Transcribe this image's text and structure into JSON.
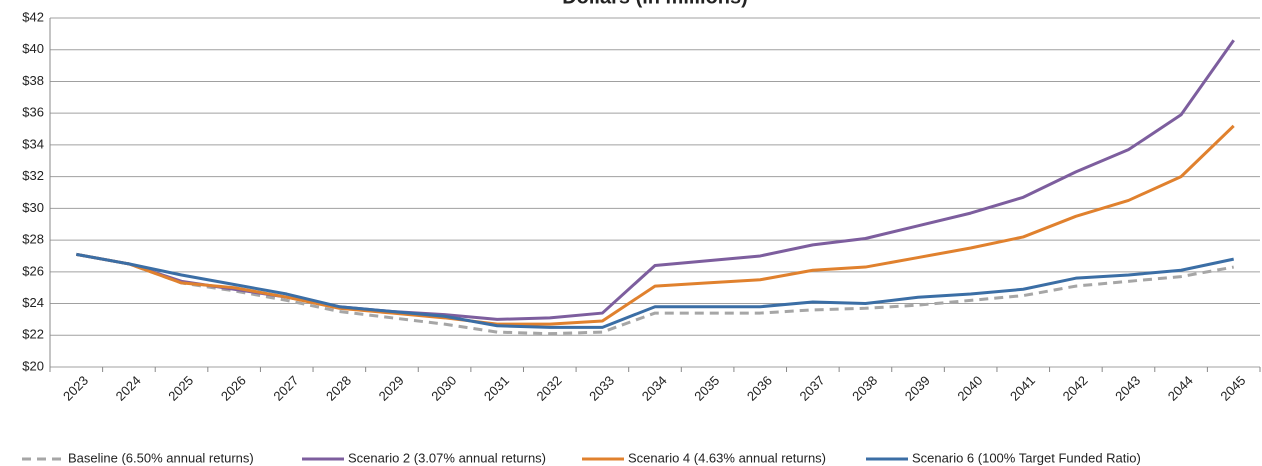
{
  "chart_data": {
    "type": "line",
    "title": "Dollars (in millions)",
    "categories": [
      "2023",
      "2024",
      "2025",
      "2026",
      "2027",
      "2028",
      "2029",
      "2030",
      "2031",
      "2032",
      "2033",
      "2034",
      "2035",
      "2036",
      "2037",
      "2038",
      "2039",
      "2040",
      "2041",
      "2042",
      "2043",
      "2044",
      "2045"
    ],
    "series": [
      {
        "name": "Baseline (6.50% annual returns)",
        "color": "#a6a6a6",
        "dashed": true,
        "values": [
          27.1,
          26.5,
          25.3,
          24.8,
          24.2,
          23.5,
          23.1,
          22.7,
          22.2,
          22.1,
          22.2,
          23.4,
          23.4,
          23.4,
          23.6,
          23.7,
          23.9,
          24.2,
          24.5,
          25.1,
          25.4,
          25.7,
          26.3
        ]
      },
      {
        "name": "Scenario 2 (3.07% annual returns)",
        "color": "#7d5e9e",
        "dashed": false,
        "values": [
          27.1,
          26.5,
          25.4,
          24.9,
          24.4,
          23.8,
          23.5,
          23.3,
          23.0,
          23.1,
          23.4,
          26.4,
          26.7,
          27.0,
          27.7,
          28.1,
          28.9,
          29.7,
          30.7,
          32.3,
          33.7,
          35.9,
          40.6
        ]
      },
      {
        "name": "Scenario 4 (4.63% annual returns)",
        "color": "#e0812e",
        "dashed": false,
        "values": [
          27.1,
          26.5,
          25.3,
          25.0,
          24.4,
          23.7,
          23.4,
          23.1,
          22.7,
          22.7,
          22.9,
          25.1,
          25.3,
          25.5,
          26.1,
          26.3,
          26.9,
          27.5,
          28.2,
          29.5,
          30.5,
          32.0,
          35.2
        ]
      },
      {
        "name": "Scenario 6 (100% Target Funded Ratio)",
        "color": "#3b6ea5",
        "dashed": false,
        "values": [
          27.1,
          26.5,
          25.8,
          25.2,
          24.6,
          23.8,
          23.5,
          23.2,
          22.6,
          22.5,
          22.5,
          23.8,
          23.8,
          23.8,
          24.1,
          24.0,
          24.4,
          24.6,
          24.9,
          25.6,
          25.8,
          26.1,
          26.8
        ]
      }
    ],
    "ylim": [
      20,
      42
    ],
    "yticks": [
      {
        "value": 20,
        "label": "$20"
      },
      {
        "value": 22,
        "label": "$22"
      },
      {
        "value": 24,
        "label": "$24"
      },
      {
        "value": 26,
        "label": "$26"
      },
      {
        "value": 28,
        "label": "$28"
      },
      {
        "value": 30,
        "label": "$30"
      },
      {
        "value": 32,
        "label": "$32"
      },
      {
        "value": 34,
        "label": "$34"
      },
      {
        "value": 36,
        "label": "$36"
      },
      {
        "value": 38,
        "label": "$38"
      },
      {
        "value": 40,
        "label": "$40"
      },
      {
        "value": 42,
        "label": "$42"
      }
    ],
    "grid": true,
    "legend": "bottom"
  }
}
